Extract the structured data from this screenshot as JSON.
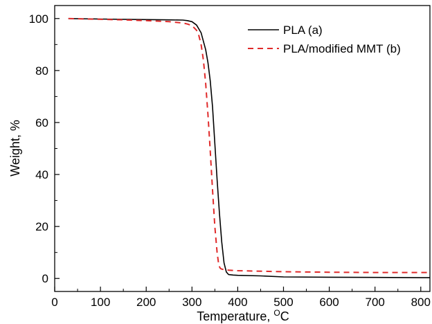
{
  "chart_data": {
    "type": "line",
    "xlabel": "Temperature, ",
    "xlabel_unit_sup": "O",
    "xlabel_unit": "C",
    "ylabel": "Weight, %",
    "xlim": [
      0,
      820
    ],
    "ylim": [
      -5,
      105
    ],
    "xticks": [
      0,
      100,
      200,
      300,
      400,
      500,
      600,
      700,
      800
    ],
    "yticks": [
      0,
      20,
      40,
      60,
      80,
      100
    ],
    "grid": false,
    "legend_position": "top-right",
    "series": [
      {
        "name": "PLA (a)",
        "color": "#000000",
        "dash": "solid",
        "x": [
          30,
          100,
          200,
          250,
          280,
          290,
          300,
          310,
          320,
          330,
          335,
          340,
          345,
          350,
          355,
          360,
          365,
          370,
          375,
          380,
          390,
          400,
          450,
          500,
          600,
          700,
          800,
          820
        ],
        "y": [
          100,
          99.8,
          99.6,
          99.5,
          99.4,
          99.2,
          98.8,
          97.5,
          94.5,
          88,
          83,
          76,
          66,
          52,
          38,
          25,
          14,
          6,
          2.5,
          1.5,
          1.3,
          1.2,
          1,
          0.6,
          0.5,
          0.4,
          0.3,
          0.3
        ]
      },
      {
        "name": "PLA/modified MMT (b)",
        "color": "#e02a2a",
        "dash": "dashed",
        "x": [
          30,
          100,
          150,
          200,
          250,
          280,
          290,
          300,
          310,
          315,
          320,
          325,
          330,
          335,
          340,
          345,
          350,
          355,
          358,
          360,
          362,
          365,
          370,
          380,
          400,
          500,
          600,
          700,
          820
        ],
        "y": [
          100,
          99.7,
          99.5,
          99.2,
          98.8,
          98.3,
          97.9,
          97.3,
          95.5,
          93.5,
          90,
          84,
          75,
          63,
          49,
          34,
          20,
          10,
          6,
          4.5,
          3.9,
          3.6,
          3.4,
          3.2,
          3,
          2.6,
          2.4,
          2.3,
          2.3
        ]
      }
    ]
  }
}
